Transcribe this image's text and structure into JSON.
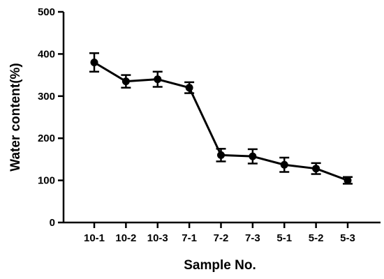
{
  "chart_data": {
    "type": "line",
    "title": "",
    "xlabel": "Sample No.",
    "ylabel": "Water content(%)",
    "categories": [
      "10-1",
      "10-2",
      "10-3",
      "7-1",
      "7-2",
      "7-3",
      "5-1",
      "5-2",
      "5-3"
    ],
    "series": [
      {
        "values": [
          380,
          335,
          340,
          320,
          160,
          157,
          137,
          128,
          100
        ],
        "errors": [
          22,
          15,
          18,
          13,
          15,
          17,
          17,
          13,
          8
        ],
        "color": "#000000",
        "marker": "circle"
      }
    ],
    "ylim": [
      0,
      500
    ],
    "yticks": [
      0,
      100,
      200,
      300,
      400,
      500
    ],
    "grid": false,
    "legend": "none"
  }
}
